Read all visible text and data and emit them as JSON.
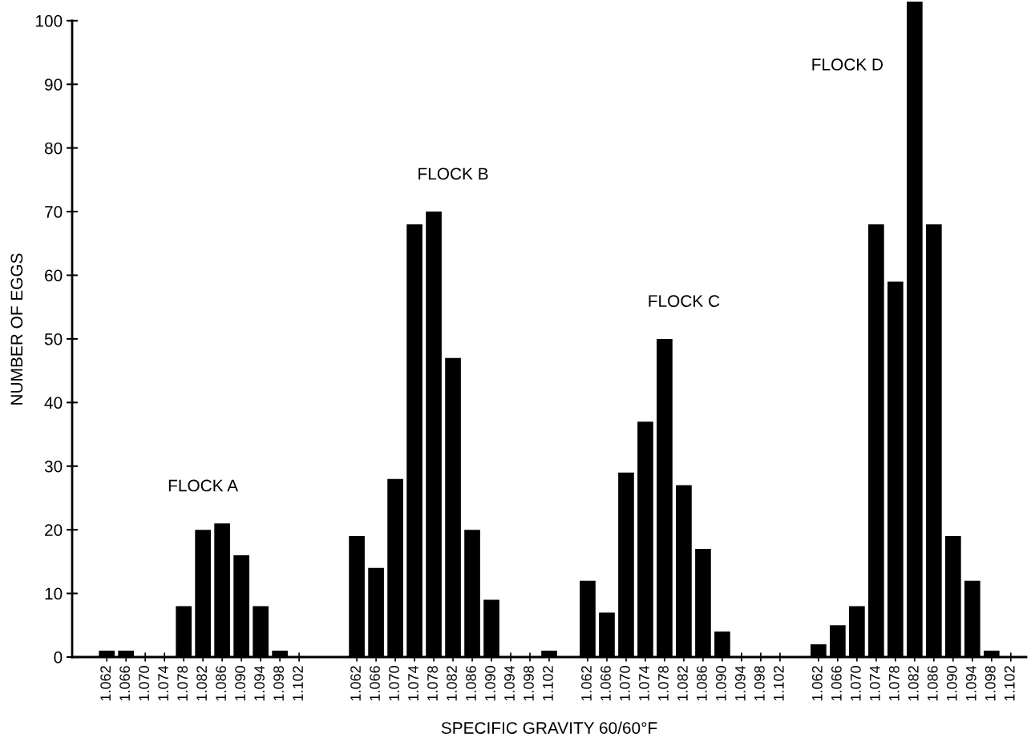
{
  "chart_data": {
    "type": "bar",
    "xlabel": "SPECIFIC GRAVITY 60/60°F",
    "ylabel": "NUMBER OF EGGS",
    "categories": [
      "1.062",
      "1.066",
      "1.070",
      "1.074",
      "1.078",
      "1.082",
      "1.086",
      "1.090",
      "1.094",
      "1.098",
      "1.102",
      null,
      null,
      "1.062",
      "1.066",
      "1.070",
      "1.074",
      "1.078",
      "1.082",
      "1.086",
      "1.090",
      "1.094",
      "1.098",
      "1.102",
      null,
      "1.062",
      "1.066",
      "1.070",
      "1.074",
      "1.078",
      "1.082",
      "1.086",
      "1.090",
      "1.094",
      "1.098",
      "1.102",
      null,
      "1.062",
      "1.066",
      "1.070",
      "1.074",
      "1.078",
      "1.082",
      "1.086",
      "1.090",
      "1.094",
      "1.098",
      "1.102"
    ],
    "values": [
      1,
      1,
      0,
      0,
      8,
      20,
      21,
      16,
      8,
      1,
      0,
      null,
      null,
      19,
      14,
      28,
      68,
      70,
      47,
      20,
      9,
      0,
      0,
      1,
      null,
      12,
      7,
      29,
      37,
      50,
      27,
      17,
      4,
      0,
      0,
      0,
      null,
      2,
      5,
      8,
      68,
      59,
      103,
      68,
      19,
      12,
      1,
      0
    ],
    "color": "#000000",
    "ylim": [
      0,
      103
    ],
    "yticks": [
      0,
      10,
      20,
      30,
      40,
      50,
      60,
      70,
      80,
      90,
      100
    ],
    "annotations": [
      "FLOCK A",
      "FLOCK B",
      "FLOCK C",
      "FLOCK D"
    ],
    "grid": false,
    "legend": false
  }
}
